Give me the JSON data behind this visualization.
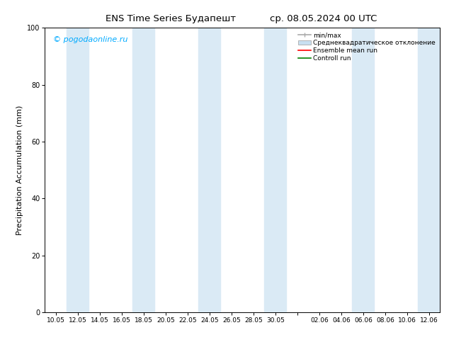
{
  "title_left": "ENS Time Series Будапешт",
  "title_right": "ср. 08.05.2024 00 UTC",
  "ylabel": "Precipitation Accumulation (mm)",
  "ylim": [
    0,
    100
  ],
  "yticks": [
    0,
    20,
    40,
    60,
    80,
    100
  ],
  "watermark": "© pogodaonline.ru",
  "background_color": "#ffffff",
  "plot_bg_color": "#ffffff",
  "x_tick_labels": [
    "10.05",
    "12.05",
    "14.05",
    "16.05",
    "18.05",
    "20.05",
    "22.05",
    "24.05",
    "26.05",
    "28.05",
    "30.05",
    "",
    "02.06",
    "04.06",
    "06.06",
    "08.06",
    "10.06",
    "12.06"
  ],
  "shade_band_color": "#daeaf5",
  "legend_labels": [
    "min/max",
    "Среднеквадратическое отклонение",
    "Ensemble mean run",
    "Controll run"
  ],
  "shade_x_pairs": [
    [
      0.5,
      1.5
    ],
    [
      3.5,
      4.5
    ],
    [
      6.5,
      7.5
    ],
    [
      9.5,
      10.5
    ],
    [
      13.5,
      14.5
    ],
    [
      16.5,
      17.5
    ]
  ],
  "x_positions": [
    0,
    1,
    2,
    3,
    4,
    5,
    6,
    7,
    8,
    9,
    10,
    11,
    12,
    13,
    14,
    15,
    16,
    17
  ],
  "xlim": [
    -0.5,
    17.5
  ]
}
